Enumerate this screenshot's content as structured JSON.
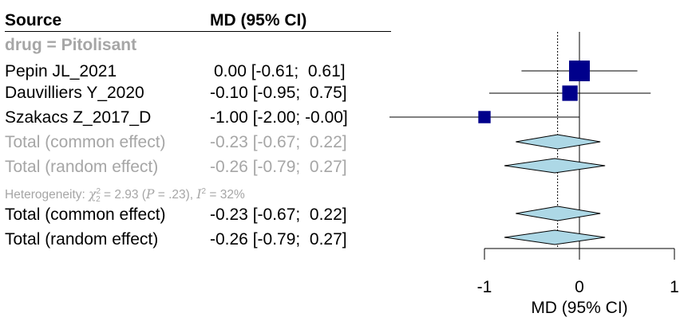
{
  "columns": {
    "source": "Source",
    "estimate": "MD (95% CI)"
  },
  "subgroup_label": "drug = Pitolisant",
  "heterogeneity": {
    "prefix": "Heterogeneity: ",
    "chi_symbol": "χ",
    "chi_sup": "2",
    "chi_sub": "2",
    "chi_value": " = 2.93 (",
    "p_symbol": "P",
    "p_value": " = .23), ",
    "i_symbol": "I",
    "i_sup": "2",
    "i_value": " = 32%"
  },
  "rows": [
    {
      "label": "Pepin JL_2021",
      "ci_text": "0.00 [-0.61;  0.61]",
      "style": "study"
    },
    {
      "label": "Dauvilliers Y_2020",
      "ci_text": "-0.10 [-0.95;  0.75]",
      "style": "study"
    },
    {
      "label": "Szakacs Z_2017_D",
      "ci_text": "-1.00 [-2.00; -0.00]",
      "style": "study"
    },
    {
      "label": "Total (common effect)",
      "ci_text": "-0.23 [-0.67;  0.22]",
      "style": "subgroup"
    },
    {
      "label": "Total (random effect)",
      "ci_text": "-0.26 [-0.79;  0.27]",
      "style": "subgroup"
    },
    {
      "label": "Total (common effect)",
      "ci_text": "-0.23 [-0.67;  0.22]",
      "style": "overall"
    },
    {
      "label": "Total (random effect)",
      "ci_text": "-0.26 [-0.79;  0.27]",
      "style": "overall"
    }
  ],
  "chart_data": {
    "type": "forest",
    "xlabel": "MD (95% CI)",
    "xlim": [
      -1,
      1
    ],
    "xticks": [
      -1,
      0,
      1
    ],
    "reference_line": 0,
    "common_effect_line": -0.23,
    "studies": [
      {
        "label": "Pepin JL_2021",
        "md": 0.0,
        "lower": -0.61,
        "upper": 0.61,
        "weight": 1.0
      },
      {
        "label": "Dauvilliers Y_2020",
        "md": -0.1,
        "lower": -0.95,
        "upper": 0.75,
        "weight": 0.55
      },
      {
        "label": "Szakacs Z_2017_D",
        "md": -1.0,
        "lower": -2.0,
        "upper": 0.0,
        "weight": 0.35
      }
    ],
    "summaries": [
      {
        "label": "Total (common effect)",
        "md": -0.23,
        "lower": -0.67,
        "upper": 0.22,
        "group": "subgroup"
      },
      {
        "label": "Total (random effect)",
        "md": -0.26,
        "lower": -0.79,
        "upper": 0.27,
        "group": "subgroup"
      },
      {
        "label": "Total (common effect)",
        "md": -0.23,
        "lower": -0.67,
        "upper": 0.22,
        "group": "overall"
      },
      {
        "label": "Total (random effect)",
        "md": -0.26,
        "lower": -0.79,
        "upper": 0.27,
        "group": "overall"
      }
    ],
    "colors": {
      "square": "#00008b",
      "diamond_fill": "#add8e6",
      "diamond_stroke": "#000000",
      "muted_text": "#a6a6a6"
    }
  }
}
